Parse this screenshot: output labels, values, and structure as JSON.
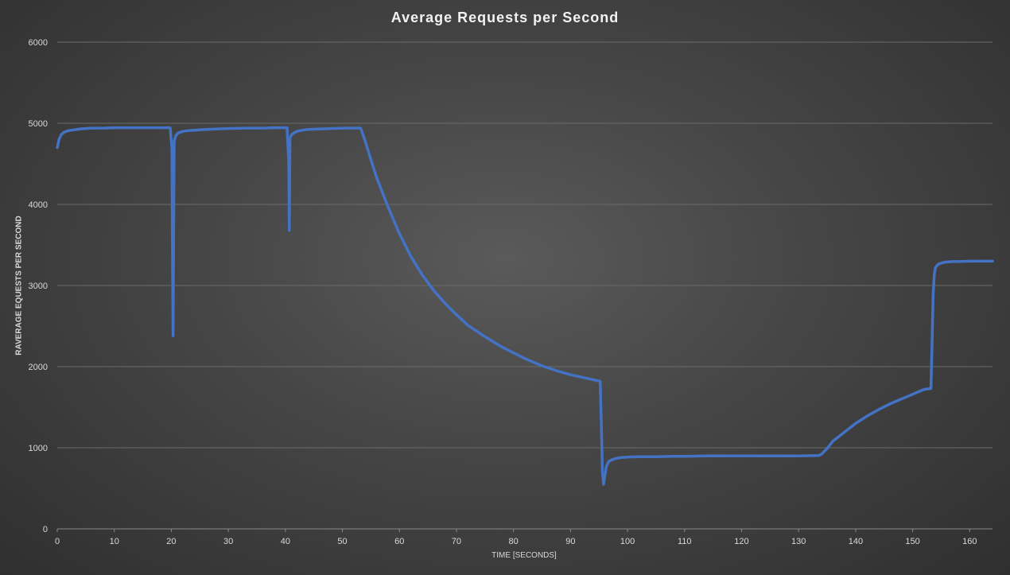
{
  "chart_data": {
    "type": "line",
    "title": "Average Requests per Second",
    "xlabel": "TIME [SECONDS]",
    "ylabel": "RAVERAGE EQUESTS PER SECOND",
    "xlim": [
      0,
      164
    ],
    "ylim": [
      0,
      6000
    ],
    "x_ticks": [
      0,
      10,
      20,
      30,
      40,
      50,
      60,
      70,
      80,
      90,
      100,
      110,
      120,
      130,
      140,
      150,
      160
    ],
    "y_ticks": [
      0,
      1000,
      2000,
      3000,
      4000,
      5000,
      6000
    ],
    "grid": "horizontal",
    "legend": "none",
    "series": [
      {
        "color": "#4472c4",
        "x": [
          0,
          0.3,
          0.7,
          1.2,
          2,
          3,
          4,
          5,
          6,
          8,
          10,
          12,
          14,
          16,
          18,
          19.8,
          20.1,
          20.2,
          20.3,
          20.5,
          20.8,
          21.2,
          22,
          23,
          25,
          28,
          30,
          33,
          36,
          38,
          40.3,
          40.6,
          40.7,
          40.8,
          41.1,
          41.5,
          42,
          43,
          44,
          46,
          48,
          50,
          52,
          53.2,
          54,
          55,
          56,
          58,
          60,
          62,
          64,
          66,
          68,
          70,
          72,
          75,
          78,
          80,
          82,
          85,
          88,
          90,
          92,
          95.2,
          95.4,
          95.6,
          95.8,
          96,
          96.3,
          96.7,
          97.2,
          98,
          99,
          100,
          102,
          105,
          108,
          110,
          115,
          120,
          125,
          130,
          133.5,
          134,
          135,
          136,
          138,
          140,
          142,
          144,
          146,
          148,
          150,
          152,
          153.2,
          153.4,
          153.6,
          153.8,
          154,
          154.3,
          154.7,
          155.2,
          156,
          157,
          158,
          160,
          162,
          164
        ],
        "y": [
          4700,
          4800,
          4860,
          4890,
          4910,
          4920,
          4930,
          4935,
          4940,
          4940,
          4945,
          4945,
          4945,
          4945,
          4945,
          4945,
          4700,
          3500,
          2380,
          4780,
          4850,
          4880,
          4900,
          4910,
          4920,
          4930,
          4935,
          4940,
          4940,
          4945,
          4945,
          4500,
          3680,
          4820,
          4860,
          4880,
          4900,
          4915,
          4925,
          4930,
          4935,
          4940,
          4940,
          4940,
          4780,
          4550,
          4330,
          3970,
          3640,
          3360,
          3130,
          2940,
          2780,
          2640,
          2510,
          2370,
          2240,
          2170,
          2100,
          2010,
          1940,
          1900,
          1870,
          1820,
          1300,
          700,
          550,
          650,
          770,
          830,
          850,
          870,
          880,
          885,
          890,
          890,
          895,
          895,
          900,
          900,
          900,
          900,
          905,
          920,
          990,
          1080,
          1190,
          1300,
          1390,
          1470,
          1540,
          1600,
          1660,
          1720,
          1730,
          2300,
          2900,
          3150,
          3220,
          3250,
          3270,
          3280,
          3290,
          3295,
          3295,
          3300,
          3300,
          3300
        ]
      }
    ]
  }
}
